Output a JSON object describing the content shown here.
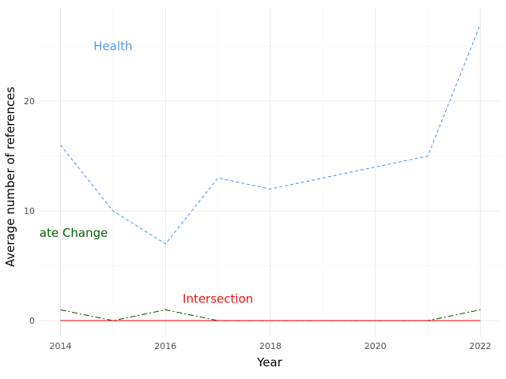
{
  "chart_data": {
    "type": "line",
    "title": "",
    "xlabel": "Year",
    "ylabel": "Average number of references",
    "xlim": [
      2013.6,
      2022.4
    ],
    "ylim": [
      -1.5,
      28.5
    ],
    "grid": true,
    "x": [
      2014,
      2015,
      2016,
      2017,
      2018,
      2019,
      2020,
      2021,
      2022
    ],
    "x_ticks": [
      2014,
      2016,
      2018,
      2020,
      2022
    ],
    "y_ticks": [
      0,
      10,
      20
    ],
    "series": [
      {
        "name": "Health",
        "color": "#5599ee",
        "dash": "dashed",
        "values": [
          16,
          10,
          7,
          13,
          12,
          13,
          14,
          15,
          27
        ],
        "label_pos": [
          2015,
          25
        ]
      },
      {
        "name": "ate Change",
        "color": "#006400",
        "dash": "dashdot",
        "values": [
          1,
          0,
          1,
          0,
          0,
          0,
          0,
          0,
          1
        ],
        "label_pos": [
          2014.25,
          8
        ]
      },
      {
        "name": "Intersection",
        "color": "#ee1111",
        "dash": "solid",
        "values": [
          0,
          0,
          0,
          0,
          0,
          0,
          0,
          0,
          0
        ],
        "label_pos": [
          2017,
          2
        ]
      }
    ]
  }
}
